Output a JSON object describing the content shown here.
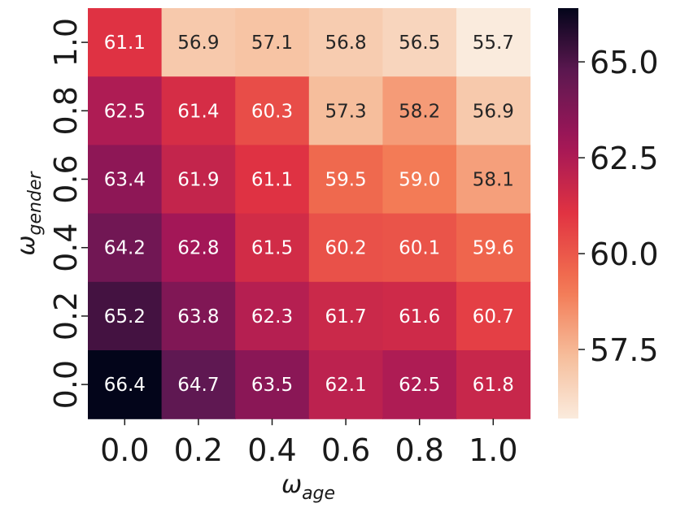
{
  "chart_data": {
    "type": "heatmap",
    "x_categories": [
      "0.0",
      "0.2",
      "0.4",
      "0.6",
      "0.8",
      "1.0"
    ],
    "y_categories": [
      "1.0",
      "0.8",
      "0.6",
      "0.4",
      "0.2",
      "0.0"
    ],
    "xlabel": "ωage",
    "ylabel": "ωgender",
    "values": [
      [
        61.1,
        56.9,
        57.1,
        56.8,
        56.5,
        55.7
      ],
      [
        62.5,
        61.4,
        60.3,
        57.3,
        58.2,
        56.9
      ],
      [
        63.4,
        61.9,
        61.1,
        59.5,
        59.0,
        58.1
      ],
      [
        64.2,
        62.8,
        61.5,
        60.2,
        60.1,
        59.6
      ],
      [
        65.2,
        63.8,
        62.3,
        61.7,
        61.6,
        60.7
      ],
      [
        66.4,
        64.7,
        63.5,
        62.1,
        62.5,
        61.8
      ]
    ],
    "colorbar": {
      "range": [
        55.7,
        66.4
      ],
      "ticks": [
        "57.5",
        "60.0",
        "62.5",
        "65.0"
      ],
      "colormap": "rocket_r"
    }
  }
}
